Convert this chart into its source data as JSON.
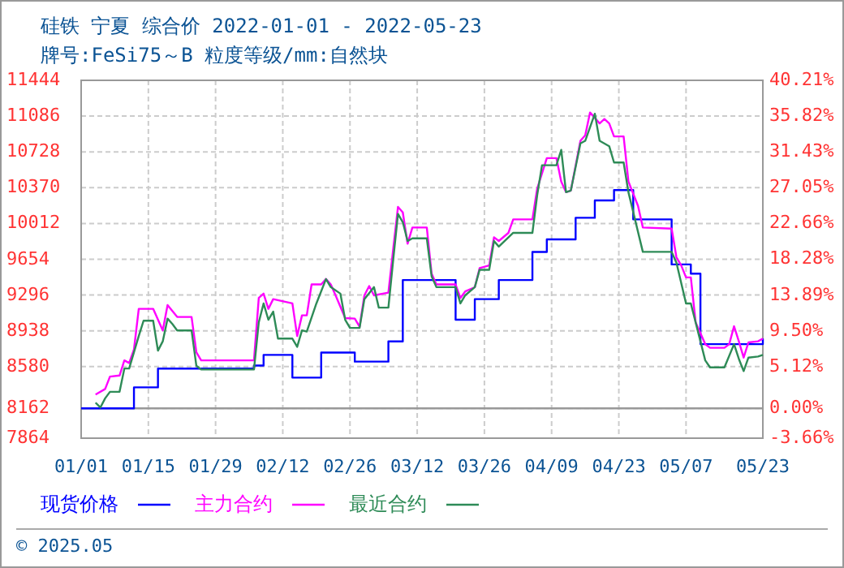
{
  "chart_data": {
    "type": "line",
    "title": "硅铁 宁夏 综合价 2022-01-01 - 2022-05-23",
    "subtitle": "牌号:FeSi75～B 粒度等级/mm:自然块",
    "xlim": [
      "--01-01",
      "--05-23"
    ],
    "xticks": [
      {
        "value": "--01-01",
        "label": "01/01"
      },
      {
        "value": "--01-15",
        "label": "01/15"
      },
      {
        "value": "--01-29",
        "label": "01/29"
      },
      {
        "value": "--02-12",
        "label": "02/12"
      },
      {
        "value": "--02-26",
        "label": "02/26"
      },
      {
        "value": "--03-12",
        "label": "03/12"
      },
      {
        "value": "--03-26",
        "label": "03/26"
      },
      {
        "value": "--04-09",
        "label": "04/09"
      },
      {
        "value": "--04-23",
        "label": "04/23"
      },
      {
        "value": "--05-07",
        "label": "05/07"
      },
      {
        "value": "--05-23",
        "label": "05/23"
      }
    ],
    "ylim": [
      7864,
      11444
    ],
    "yticks": [
      7864,
      8162,
      8580,
      8938,
      9296,
      9654,
      10012,
      10370,
      10728,
      11086,
      11444
    ],
    "y2lim": [
      -3.66,
      40.21
    ],
    "y2ticks": [
      {
        "value": -3.66,
        "label": "-3.66%"
      },
      {
        "value": 0,
        "label": "0.00%"
      },
      {
        "value": 5.12,
        "label": "5.12%"
      },
      {
        "value": 9.5,
        "label": "9.50%"
      },
      {
        "value": 13.89,
        "label": "13.89%"
      },
      {
        "value": 18.28,
        "label": "18.28%"
      },
      {
        "value": 22.66,
        "label": "22.66%"
      },
      {
        "value": 27.05,
        "label": "27.05%"
      },
      {
        "value": 31.43,
        "label": "31.43%"
      },
      {
        "value": 35.82,
        "label": "35.82%"
      },
      {
        "value": 40.21,
        "label": "40.21%"
      }
    ],
    "grid": true,
    "legend": "bottom",
    "marker": "none",
    "line_style": "solid",
    "ref_lines": [
      {
        "axis": "y2",
        "value": 0,
        "color": "#999999"
      }
    ],
    "annotations": [
      "© 2025.05"
    ],
    "series": [
      {
        "name": "现货价格",
        "type": "step",
        "color": "#0000ff",
        "x": [
          "--01-01",
          "--01-12",
          "--01-17",
          "--02-06",
          "--02-08",
          "--02-14",
          "--02-20",
          "--02-27",
          "--03-06",
          "--03-09",
          "--03-20",
          "--03-24",
          "--03-29",
          "--04-05",
          "--04-08",
          "--04-14",
          "--04-18",
          "--04-22",
          "--04-26",
          "--05-04",
          "--05-08",
          "--05-10",
          "--05-22",
          "--05-23"
        ],
        "values": [
          8162,
          8372,
          8560,
          8590,
          8697,
          8470,
          8720,
          8630,
          8832,
          9446,
          9049,
          9255,
          9446,
          9727,
          9853,
          10069,
          10243,
          10346,
          10053,
          9602,
          9510,
          8805,
          8805,
          8860
        ]
      },
      {
        "name": "主力合约",
        "color": "#ff00ff",
        "x": [
          "--01-04",
          "--01-06",
          "--01-07",
          "--01-09",
          "--01-10",
          "--01-11",
          "--01-12",
          "--01-13",
          "--01-16",
          "--01-18",
          "--01-19",
          "--01-21",
          "--01-24",
          "--01-25",
          "--01-26",
          "--02-06",
          "--02-07",
          "--02-08",
          "--02-09",
          "--02-10",
          "--02-14",
          "--02-15",
          "--02-16",
          "--02-17",
          "--02-18",
          "--02-20",
          "--02-21",
          "--02-22",
          "--02-23",
          "--02-25",
          "--02-27",
          "--02-28",
          "--03-01",
          "--03-02",
          "--03-03",
          "--03-06",
          "--03-07",
          "--03-08",
          "--03-09",
          "--03-10",
          "--03-11",
          "--03-14",
          "--03-15",
          "--03-16",
          "--03-20",
          "--03-21",
          "--03-22",
          "--03-24",
          "--03-25",
          "--03-27",
          "--03-28",
          "--03-29",
          "--03-31",
          "--04-01",
          "--04-05",
          "--04-06",
          "--04-08",
          "--04-10",
          "--04-11",
          "--04-12",
          "--04-13",
          "--04-15",
          "--04-16",
          "--04-17",
          "--04-19",
          "--04-20",
          "--04-21",
          "--04-22",
          "--04-24",
          "--04-25",
          "--04-27",
          "--04-28",
          "--05-04",
          "--05-05",
          "--05-06",
          "--05-07",
          "--05-08",
          "--05-09",
          "--05-11",
          "--05-12",
          "--05-15",
          "--05-16",
          "--05-17",
          "--05-18",
          "--05-19",
          "--05-20",
          "--05-22",
          "--05-23"
        ],
        "values": [
          8301,
          8356,
          8480,
          8491,
          8642,
          8616,
          8751,
          9158,
          9158,
          8942,
          9195,
          9077,
          9077,
          8724,
          8642,
          8642,
          9267,
          9310,
          9158,
          9255,
          9212,
          8886,
          9093,
          9093,
          9402,
          9402,
          9456,
          9402,
          9293,
          9065,
          9060,
          8979,
          9293,
          9386,
          9293,
          9320,
          9755,
          10178,
          10123,
          9809,
          9972,
          9972,
          9511,
          9402,
          9402,
          9267,
          9332,
          9374,
          9565,
          9592,
          9874,
          9837,
          9918,
          10053,
          10053,
          10362,
          10666,
          10666,
          10432,
          10325,
          10341,
          10839,
          10894,
          11122,
          11013,
          11057,
          11013,
          10883,
          10883,
          10432,
          10188,
          9972,
          9960,
          9674,
          9592,
          9472,
          9472,
          9023,
          8805,
          8768,
          8768,
          8805,
          8984,
          8833,
          8670,
          8822,
          8833,
          8860
        ]
      },
      {
        "name": "最近合约",
        "color": "#2e8b57",
        "x": [
          "--01-04",
          "--01-05",
          "--01-06",
          "--01-07",
          "--01-09",
          "--01-10",
          "--01-11",
          "--01-13",
          "--01-14",
          "--01-16",
          "--01-17",
          "--01-18",
          "--01-19",
          "--01-20",
          "--01-21",
          "--01-24",
          "--01-25",
          "--01-26",
          "--02-06",
          "--02-07",
          "--02-08",
          "--02-09",
          "--02-10",
          "--02-11",
          "--02-14",
          "--02-15",
          "--02-16",
          "--02-17",
          "--02-19",
          "--02-21",
          "--02-22",
          "--02-24",
          "--02-25",
          "--02-26",
          "--02-28",
          "--03-01",
          "--03-03",
          "--03-04",
          "--03-06",
          "--03-07",
          "--03-08",
          "--03-09",
          "--03-10",
          "--03-11",
          "--03-14",
          "--03-15",
          "--03-16",
          "--03-20",
          "--03-21",
          "--03-22",
          "--03-24",
          "--03-25",
          "--03-27",
          "--03-28",
          "--03-29",
          "--04-01",
          "--04-05",
          "--04-06",
          "--04-07",
          "--04-10",
          "--04-11",
          "--04-12",
          "--04-13",
          "--04-15",
          "--04-16",
          "--04-18",
          "--04-19",
          "--04-21",
          "--04-22",
          "--04-24",
          "--04-25",
          "--04-28",
          "--05-04",
          "--05-05",
          "--05-07",
          "--05-08",
          "--05-10",
          "--05-11",
          "--05-12",
          "--05-15",
          "--05-17",
          "--05-18",
          "--05-19",
          "--05-20",
          "--05-22",
          "--05-23"
        ],
        "values": [
          8219,
          8171,
          8263,
          8328,
          8328,
          8561,
          8561,
          8886,
          9039,
          9039,
          8740,
          8833,
          9060,
          9006,
          8942,
          8942,
          8588,
          8551,
          8551,
          9023,
          9212,
          9049,
          9130,
          8860,
          8860,
          8778,
          8942,
          8930,
          9212,
          9456,
          9375,
          9310,
          9049,
          8967,
          8967,
          9255,
          9375,
          9170,
          9170,
          9646,
          10107,
          10025,
          9837,
          9863,
          9863,
          9484,
          9375,
          9375,
          9212,
          9293,
          9375,
          9549,
          9549,
          9837,
          9781,
          9918,
          9918,
          10297,
          10595,
          10595,
          10748,
          10325,
          10341,
          10813,
          10839,
          11110,
          10839,
          10785,
          10622,
          10622,
          10325,
          9728,
          9728,
          9619,
          9212,
          9212,
          8833,
          8642,
          8572,
          8572,
          8805,
          8658,
          8535,
          8670,
          8681,
          8698
        ]
      }
    ]
  }
}
